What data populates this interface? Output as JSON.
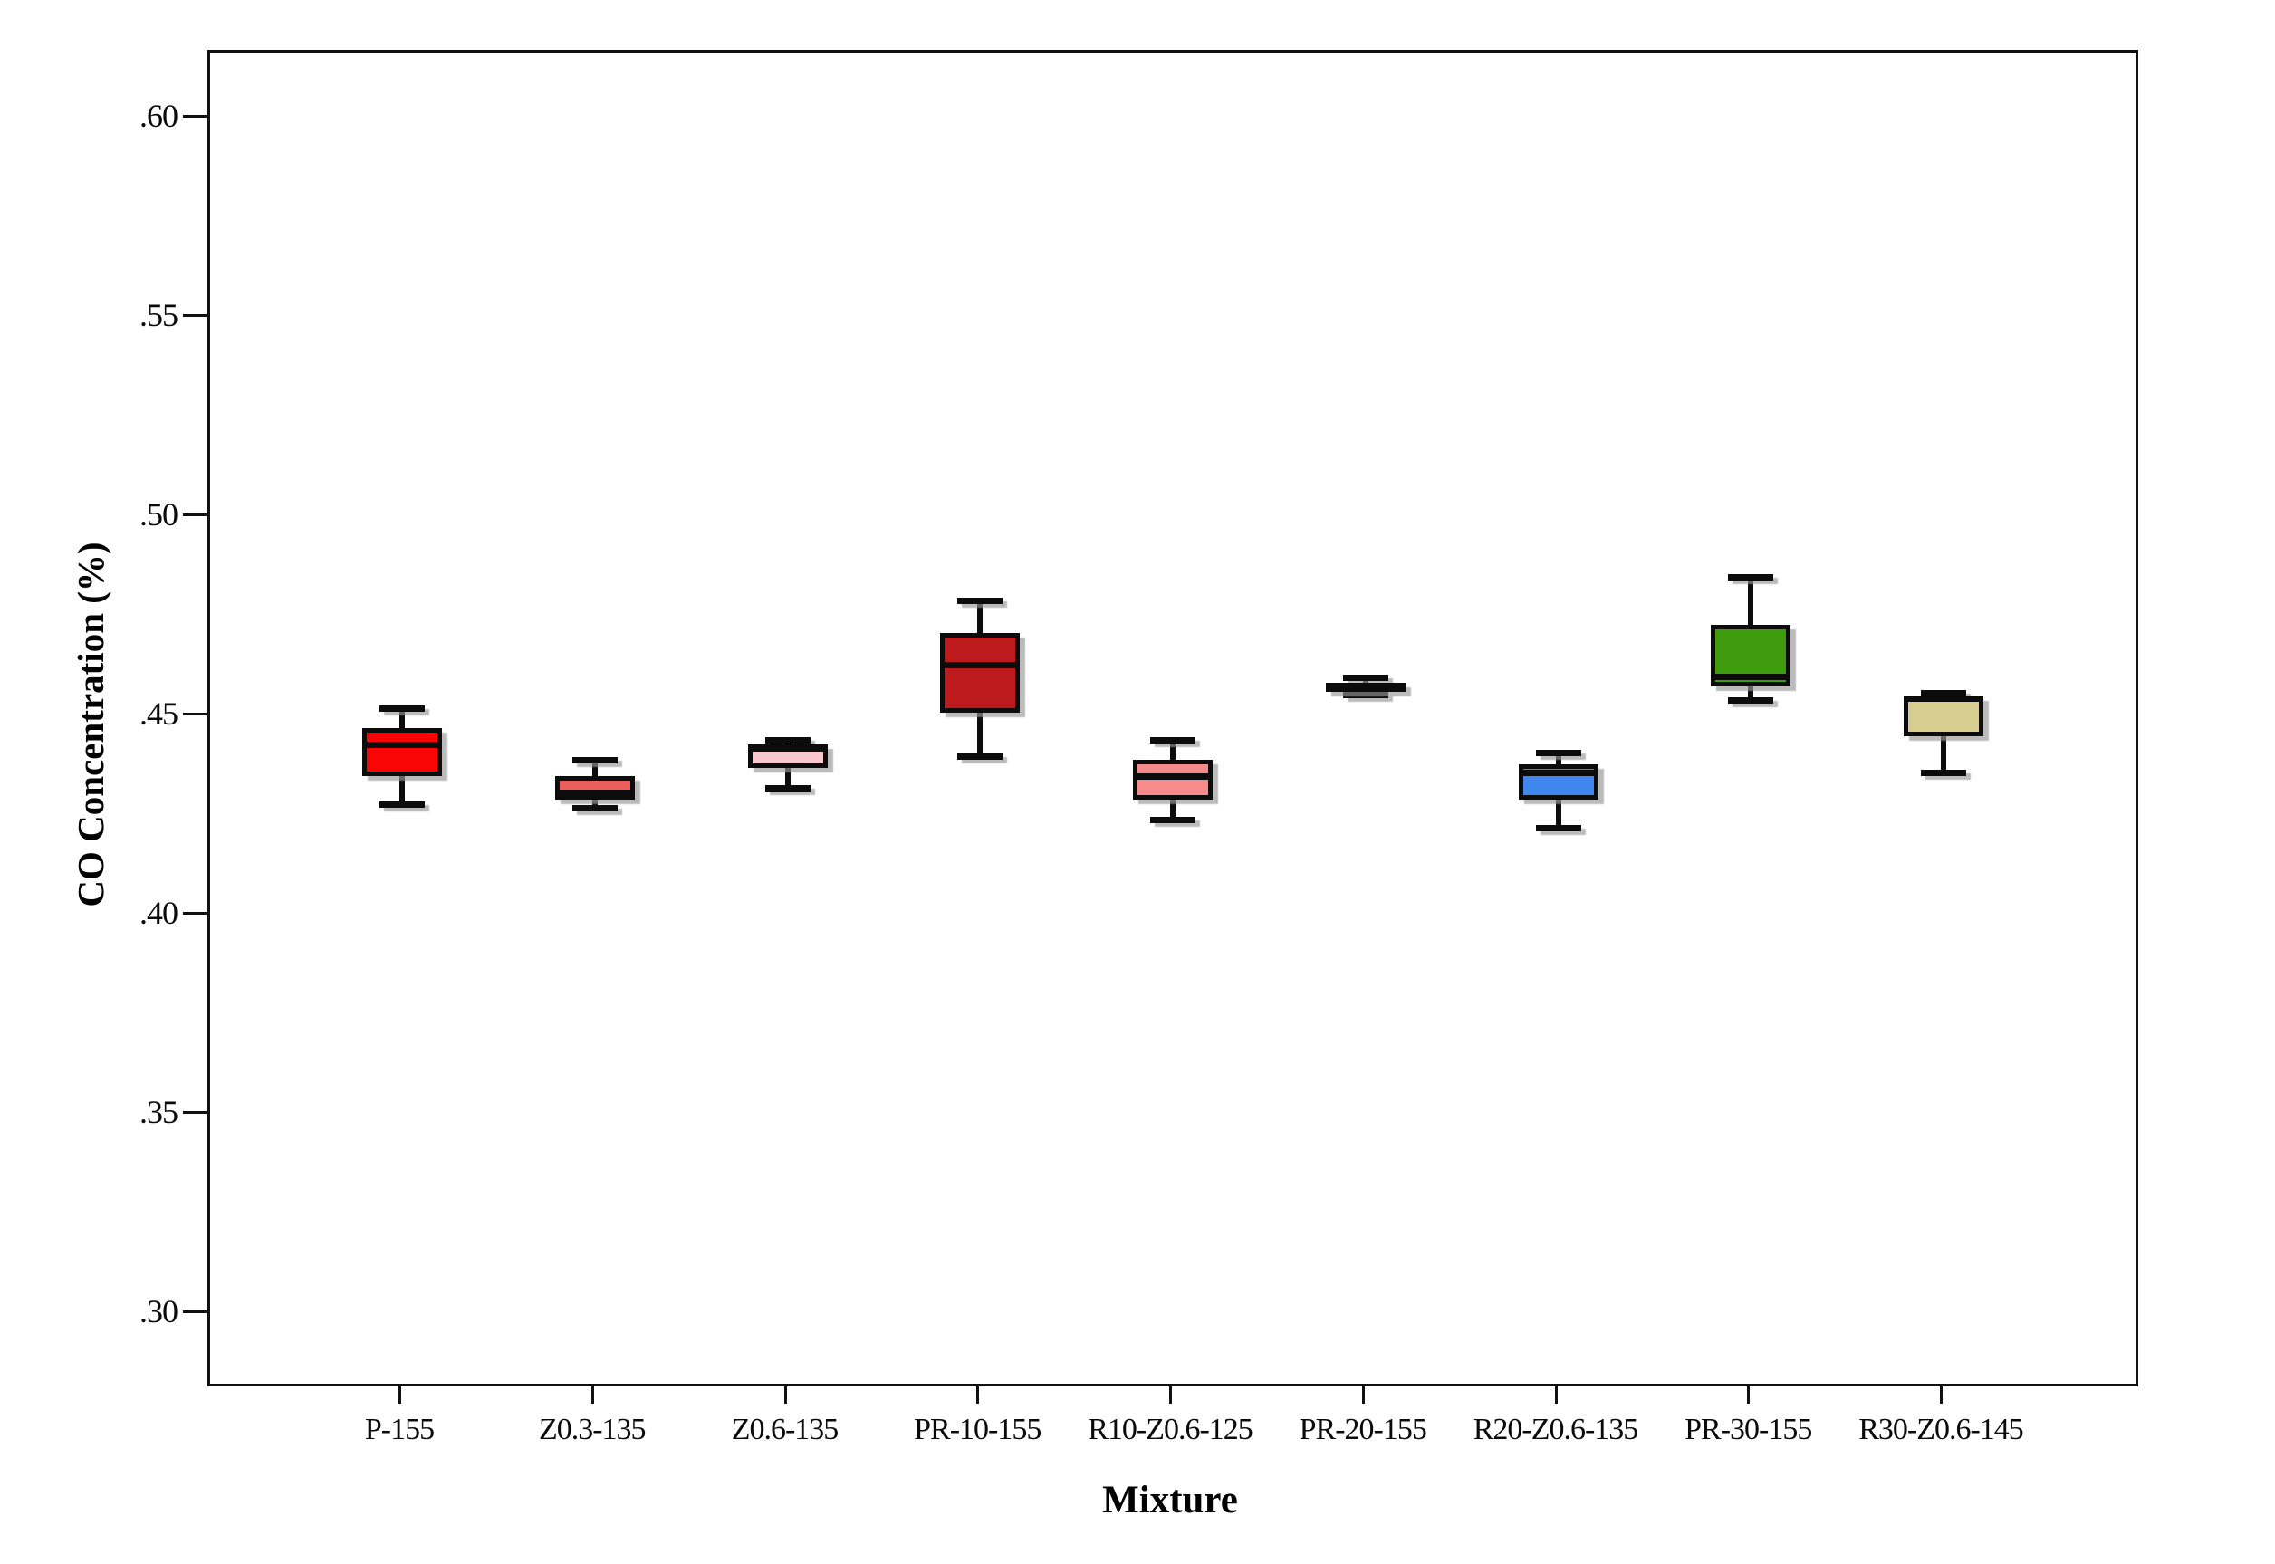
{
  "chart_data": {
    "type": "boxplot",
    "title": "",
    "xlabel": "Mixture",
    "ylabel": "CO Concentration (%)",
    "ylim": [
      0.2825,
      0.6166
    ],
    "yticks": [
      {
        "label": ".60",
        "value": 0.6
      },
      {
        "label": ".55",
        "value": 0.55
      },
      {
        "label": ".50",
        "value": 0.5
      },
      {
        "label": ".45",
        "value": 0.45
      },
      {
        "label": ".40",
        "value": 0.4
      },
      {
        "label": ".35",
        "value": 0.35
      },
      {
        "label": ".30",
        "value": 0.3
      }
    ],
    "categories": [
      "P-155",
      "Z0.3-135",
      "Z0.6-135",
      "PR-10-155",
      "R10-Z0.6-125",
      "PR-20-155",
      "R20-Z0.6-135",
      "PR-30-155",
      "R30-Z0.6-145"
    ],
    "series": [
      {
        "category": "P-155",
        "min": 0.428,
        "q1": 0.435,
        "median": 0.443,
        "q3": 0.447,
        "max": 0.452,
        "color": "#fa0505"
      },
      {
        "category": "Z0.3-135",
        "min": 0.427,
        "q1": 0.429,
        "median": 0.431,
        "q3": 0.435,
        "max": 0.439,
        "color": "#ec5e5e"
      },
      {
        "category": "Z0.6-135",
        "min": 0.432,
        "q1": 0.437,
        "median": 0.442,
        "q3": 0.443,
        "max": 0.444,
        "color": "#f8c8ce"
      },
      {
        "category": "PR-10-155",
        "min": 0.44,
        "q1": 0.451,
        "median": 0.463,
        "q3": 0.471,
        "max": 0.479,
        "color": "#bc1a1c"
      },
      {
        "category": "R10-Z0.6-125",
        "min": 0.424,
        "q1": 0.429,
        "median": 0.435,
        "q3": 0.439,
        "max": 0.444,
        "color": "#f68b8b"
      },
      {
        "category": "PR-20-155",
        "min": 0.4555,
        "q1": 0.457,
        "median": 0.4577,
        "q3": 0.4585,
        "max": 0.4598,
        "color": "#1c2a45"
      },
      {
        "category": "R20-Z0.6-135",
        "min": 0.422,
        "q1": 0.429,
        "median": 0.436,
        "q3": 0.438,
        "max": 0.441,
        "color": "#3f86ef"
      },
      {
        "category": "PR-30-155",
        "min": 0.454,
        "q1": 0.4575,
        "median": 0.46,
        "q3": 0.473,
        "max": 0.485,
        "color": "#3f9b0b"
      },
      {
        "category": "R30-Z0.6-145",
        "min": 0.436,
        "q1": 0.445,
        "median": 0.4545,
        "q3": 0.455,
        "max": 0.456,
        "color": "#d7cd8e"
      }
    ],
    "legend": null,
    "grid": false
  }
}
